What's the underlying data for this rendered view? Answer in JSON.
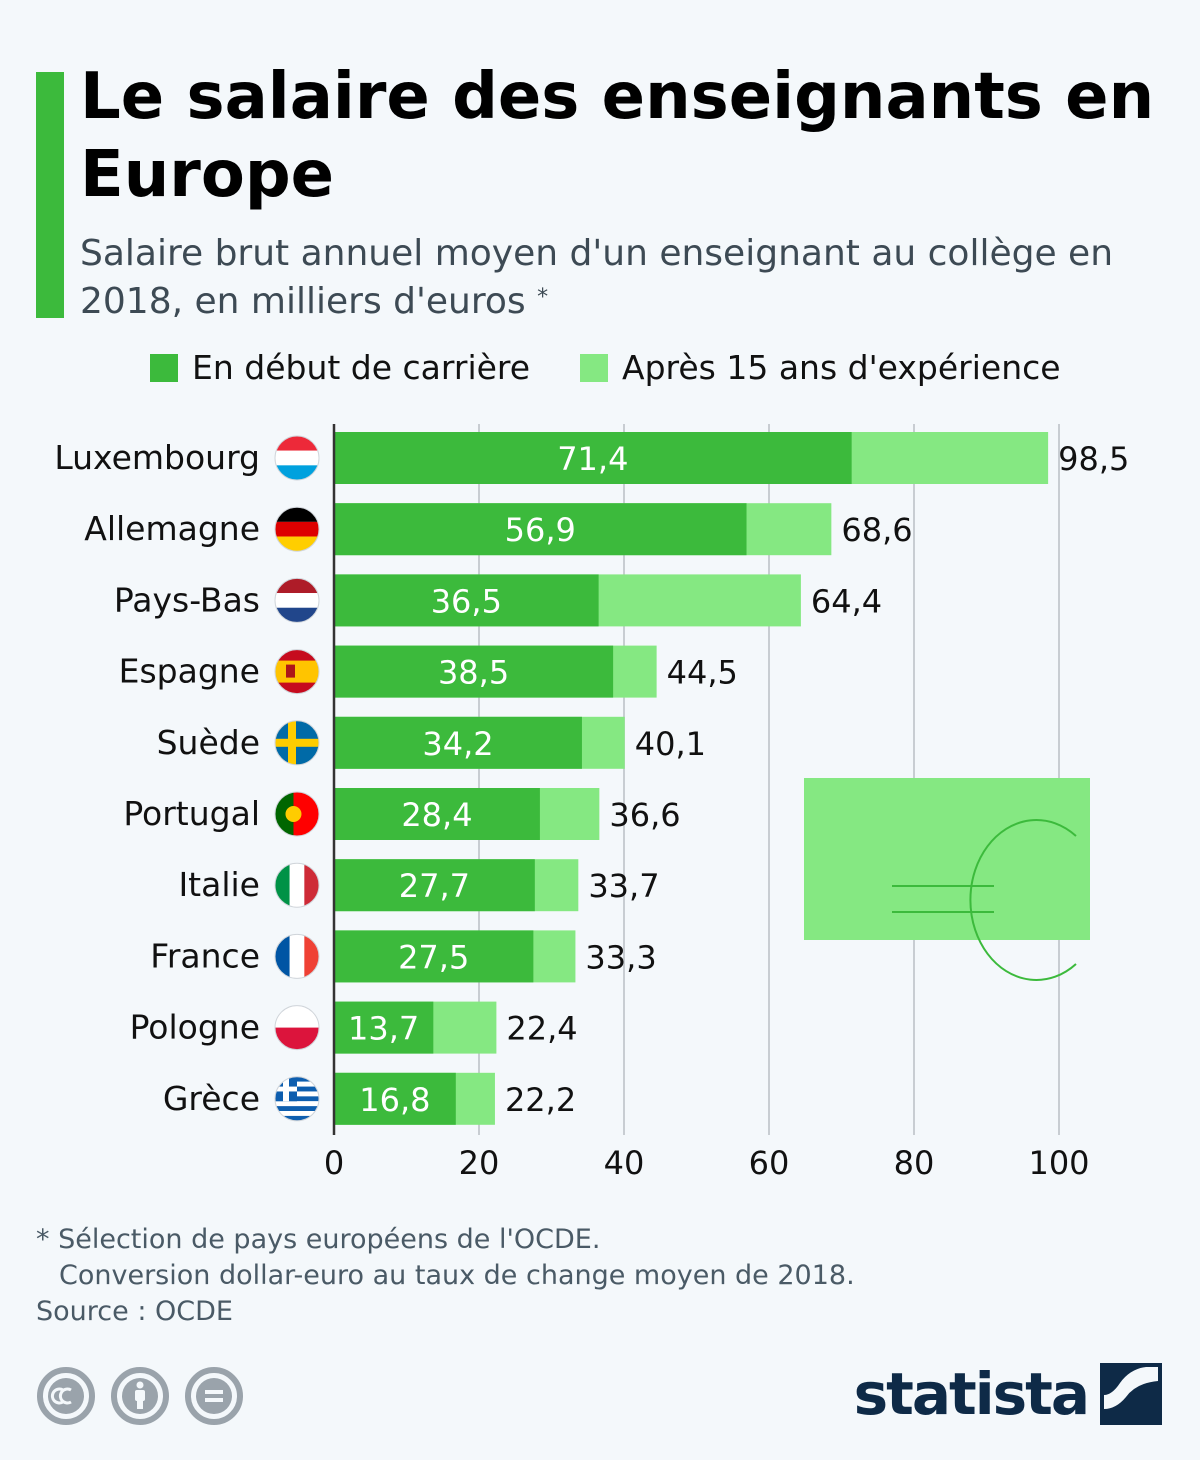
{
  "header": {
    "title": "Le salaire des enseignants en Europe",
    "subtitle": "Salaire brut annuel moyen d'un enseignant au collège en 2018, en milliers d'euros",
    "subtitle_marker": "*"
  },
  "colors": {
    "accent": "#3cba3c",
    "series_start": "#3cba3c",
    "series_15y": "#85e882",
    "grid": "#c8cdd2",
    "brand": "#0e2a47"
  },
  "chart_data": {
    "type": "bar",
    "orientation": "horizontal",
    "stacked_overlay": true,
    "categories": [
      "Luxembourg",
      "Allemagne",
      "Pays-Bas",
      "Espagne",
      "Suède",
      "Portugal",
      "Italie",
      "France",
      "Pologne",
      "Grèce"
    ],
    "series": [
      {
        "name": "En début de carrière",
        "values": [
          71.4,
          56.9,
          36.5,
          38.5,
          34.2,
          28.4,
          27.7,
          27.5,
          13.7,
          16.8
        ]
      },
      {
        "name": "Après 15 ans d'expérience",
        "values": [
          98.5,
          68.6,
          64.4,
          44.5,
          40.1,
          36.6,
          33.7,
          33.3,
          22.4,
          22.2
        ]
      }
    ],
    "value_labels_start": [
      "71,4",
      "56,9",
      "36,5",
      "38,5",
      "34,2",
      "28,4",
      "27,7",
      "27,5",
      "13,7",
      "16,8"
    ],
    "value_labels_15y": [
      "98,5",
      "68,6",
      "64,4",
      "44,5",
      "40,1",
      "36,6",
      "33,7",
      "33,3",
      "22,4",
      "22,2"
    ],
    "xlim": [
      0,
      100
    ],
    "xticks": [
      0,
      20,
      40,
      60,
      80,
      100
    ],
    "xtick_labels": [
      "0",
      "20",
      "40",
      "60",
      "80",
      "100"
    ],
    "grid": true,
    "legend_position": "top",
    "flag_icons": [
      "luxembourg-flag-icon",
      "germany-flag-icon",
      "netherlands-flag-icon",
      "spain-flag-icon",
      "sweden-flag-icon",
      "portugal-flag-icon",
      "italy-flag-icon",
      "france-flag-icon",
      "poland-flag-icon",
      "greece-flag-icon"
    ]
  },
  "footer": {
    "note_line1": "* Sélection de pays européens de l'OCDE.",
    "note_line2": "Conversion dollar-euro au taux de change moyen de 2018.",
    "source": "Source : OCDE",
    "brand": "statista",
    "license_icons": [
      "cc-icon",
      "attribution-icon",
      "no-derivatives-icon"
    ]
  }
}
